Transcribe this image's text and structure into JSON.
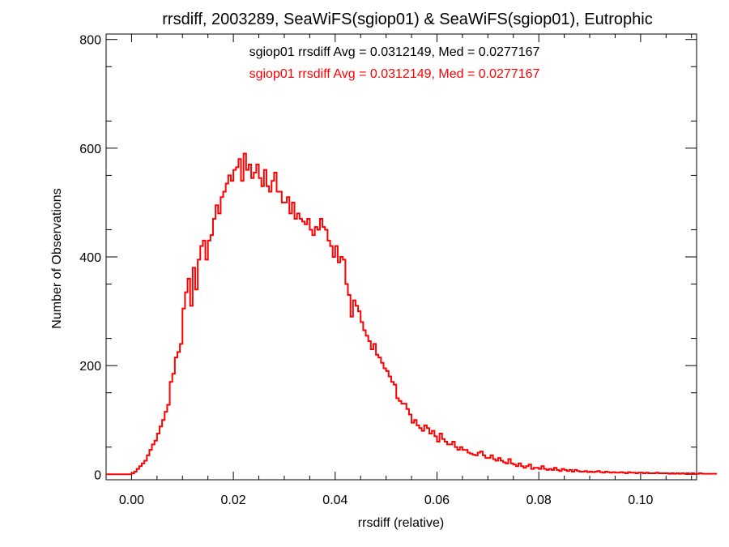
{
  "chart_data": {
    "type": "histogram",
    "title": "rrsdiff, 2003289, SeaWiFS(sgiop01) & SeaWiFS(sgiop01), Eutrophic",
    "xlabel": "rrsdiff (relative)",
    "ylabel": "Number of Observations",
    "xlim": [
      -0.005,
      0.111
    ],
    "ylim": [
      -10,
      810
    ],
    "x_ticks": [
      0.0,
      0.02,
      0.04,
      0.06,
      0.08,
      0.1
    ],
    "x_tick_labels": [
      "0.00",
      "0.02",
      "0.04",
      "0.06",
      "0.08",
      "0.10"
    ],
    "y_ticks": [
      0,
      200,
      400,
      600,
      800
    ],
    "y_tick_labels": [
      "0",
      "200",
      "400",
      "600",
      "800"
    ],
    "grid": false,
    "annotations": [
      {
        "text": "sgiop01 rrsdiff Avg = 0.0312149, Med = 0.0277167",
        "color": "#000000"
      },
      {
        "text": "sgiop01 rrsdiff Avg = 0.0312149, Med = 0.0277167",
        "color": "#ff0000"
      }
    ],
    "series": [
      {
        "color": "#ff0000",
        "bin_width": 0.0005,
        "x_start": -0.005,
        "counts": [
          0,
          0,
          0,
          0,
          0,
          0,
          0,
          0,
          0,
          0,
          2,
          5,
          10,
          15,
          20,
          25,
          35,
          45,
          55,
          62,
          75,
          88,
          100,
          115,
          128,
          170,
          185,
          215,
          225,
          240,
          305,
          335,
          360,
          310,
          380,
          340,
          395,
          420,
          430,
          395,
          430,
          440,
          470,
          495,
          480,
          510,
          520,
          535,
          550,
          540,
          560,
          565,
          580,
          540,
          590,
          560,
          570,
          545,
          555,
          570,
          545,
          530,
          560,
          530,
          520,
          540,
          555,
          520,
          520,
          500,
          500,
          510,
          480,
          500,
          470,
          480,
          470,
          465,
          460,
          470,
          450,
          440,
          455,
          450,
          470,
          455,
          450,
          430,
          420,
          400,
          420,
          390,
          400,
          395,
          350,
          330,
          290,
          320,
          310,
          300,
          280,
          265,
          255,
          245,
          230,
          240,
          220,
          215,
          205,
          195,
          190,
          180,
          170,
          165,
          140,
          135,
          130,
          130,
          120,
          110,
          95,
          100,
          90,
          85,
          80,
          90,
          85,
          75,
          80,
          70,
          60,
          75,
          65,
          60,
          55,
          55,
          60,
          50,
          45,
          50,
          45,
          45,
          40,
          38,
          36,
          35,
          40,
          42,
          35,
          30,
          30,
          35,
          28,
          25,
          30,
          25,
          22,
          20,
          28,
          20,
          18,
          15,
          20,
          15,
          12,
          15,
          18,
          10,
          12,
          12,
          10,
          15,
          10,
          8,
          10,
          8,
          12,
          8,
          6,
          10,
          8,
          6,
          8,
          5,
          8,
          6,
          5,
          5,
          6,
          4,
          5,
          4,
          5,
          6,
          4,
          3,
          5,
          4,
          3,
          4,
          3,
          3,
          4,
          3,
          2,
          4,
          3,
          3,
          2,
          3,
          3,
          2,
          3,
          2,
          2,
          2,
          3,
          2,
          2,
          2,
          2,
          1,
          2,
          1,
          2,
          1,
          2,
          1,
          2,
          1,
          2,
          1,
          1,
          2,
          1,
          1,
          1,
          1,
          1,
          1
        ]
      }
    ]
  }
}
